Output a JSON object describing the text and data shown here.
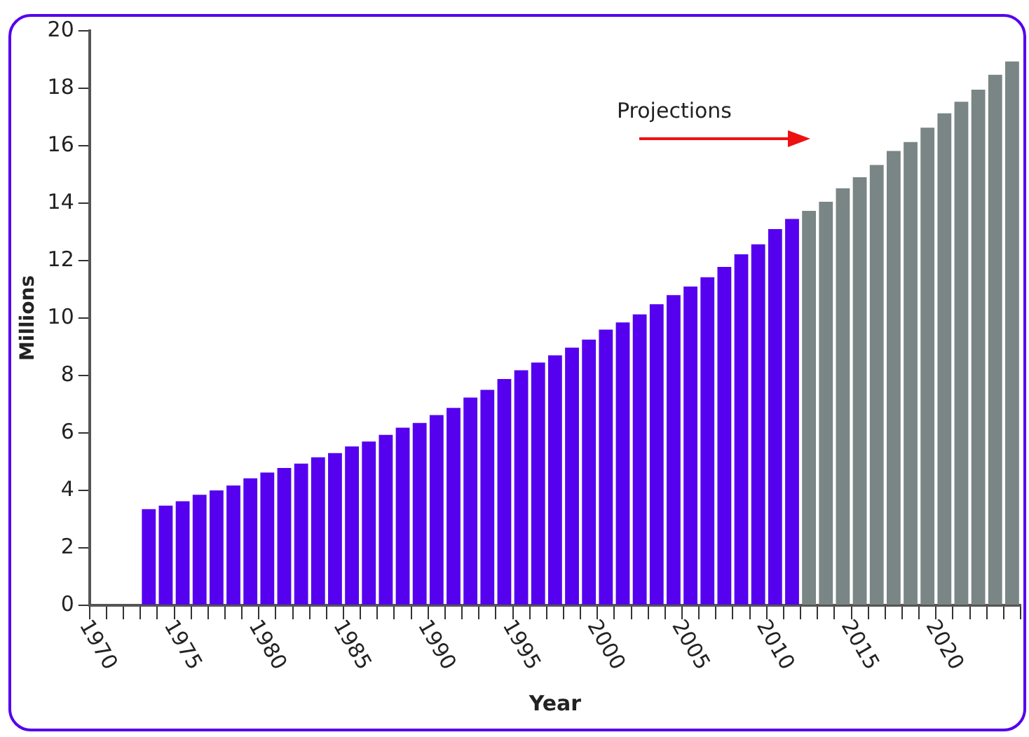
{
  "chart_data": {
    "type": "bar",
    "xlabel": "Year",
    "ylabel": "Millions",
    "categories": [
      "1970",
      null,
      null,
      null,
      null,
      "1975",
      null,
      null,
      null,
      null,
      "1980",
      null,
      null,
      null,
      null,
      "1985",
      null,
      null,
      null,
      null,
      "1990",
      null,
      null,
      null,
      null,
      "1995",
      null,
      null,
      null,
      null,
      "2000",
      null,
      null,
      null,
      null,
      "2005",
      null,
      null,
      null,
      null,
      "2010",
      null,
      null,
      null,
      null,
      "2015",
      null,
      null,
      null,
      null,
      "2020",
      null,
      null,
      null,
      null
    ],
    "values": [
      null,
      null,
      null,
      3.35,
      3.47,
      3.62,
      3.85,
      4.0,
      4.17,
      4.42,
      4.62,
      4.78,
      4.93,
      5.15,
      5.3,
      5.53,
      5.7,
      5.93,
      6.18,
      6.35,
      6.62,
      6.87,
      7.23,
      7.5,
      7.88,
      8.18,
      8.45,
      8.7,
      8.97,
      9.25,
      9.6,
      9.85,
      10.13,
      10.48,
      10.8,
      11.1,
      11.42,
      11.78,
      12.22,
      12.57,
      13.1,
      13.45,
      13.73,
      14.05,
      14.52,
      14.9,
      15.33,
      15.82,
      16.13,
      16.63,
      17.13,
      17.53,
      17.95,
      18.47,
      18.93
    ],
    "colors": [
      "#5500ee",
      "#5500ee",
      "#5500ee",
      "#5500ee",
      "#5500ee",
      "#5500ee",
      "#5500ee",
      "#5500ee",
      "#5500ee",
      "#5500ee",
      "#5500ee",
      "#5500ee",
      "#5500ee",
      "#5500ee",
      "#5500ee",
      "#5500ee",
      "#5500ee",
      "#5500ee",
      "#5500ee",
      "#5500ee",
      "#5500ee",
      "#5500ee",
      "#5500ee",
      "#5500ee",
      "#5500ee",
      "#5500ee",
      "#5500ee",
      "#5500ee",
      "#5500ee",
      "#5500ee",
      "#5500ee",
      "#5500ee",
      "#5500ee",
      "#5500ee",
      "#5500ee",
      "#5500ee",
      "#5500ee",
      "#5500ee",
      "#5500ee",
      "#5500ee",
      "#5500ee",
      "#5500ee",
      "#7a8585",
      "#7a8585",
      "#7a8585",
      "#7a8585",
      "#7a8585",
      "#7a8585",
      "#7a8585",
      "#7a8585",
      "#7a8585",
      "#7a8585",
      "#7a8585",
      "#7a8585",
      "#7a8585"
    ],
    "ylim": [
      0,
      20
    ],
    "yticks": [
      0,
      2,
      4,
      6,
      8,
      10,
      12,
      14,
      16,
      18,
      20
    ],
    "grid": false,
    "legend": false,
    "annotations": [
      "Projections"
    ]
  }
}
